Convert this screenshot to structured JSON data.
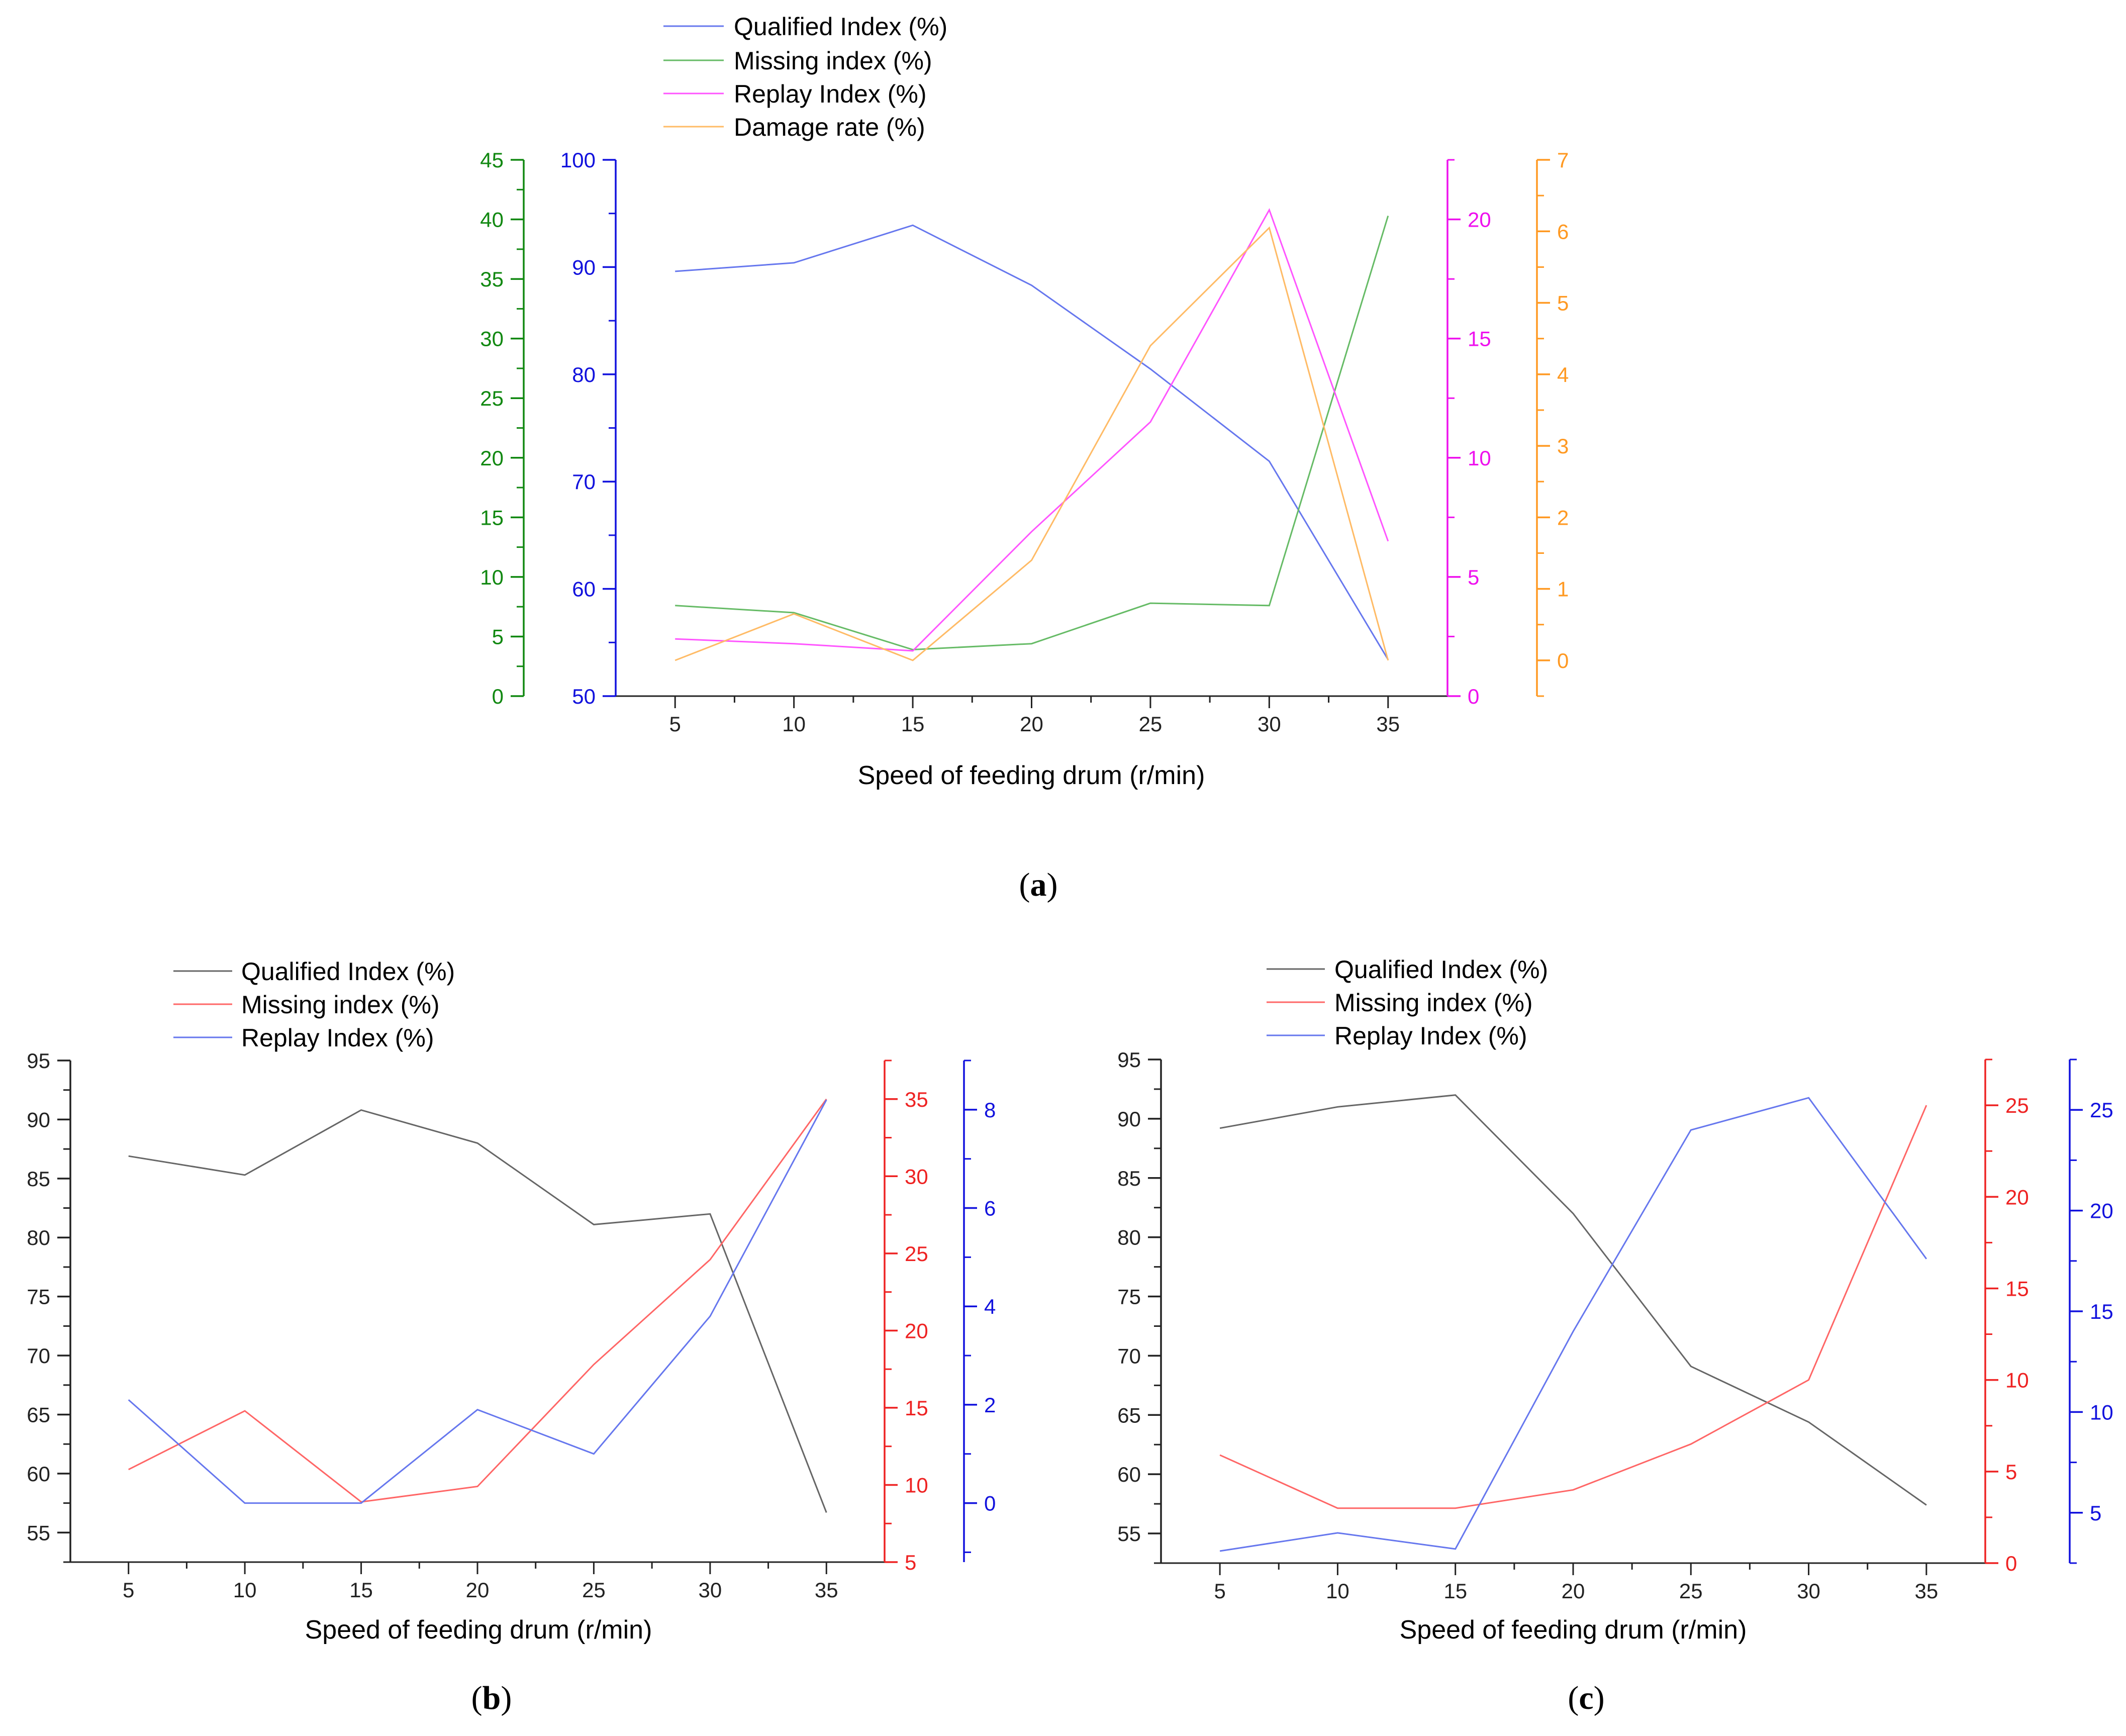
{
  "colors": {
    "axis_black": "#222222",
    "blue_axis": "#1111dd",
    "green_axis": "#118811",
    "magenta_axis": "#ee11ee",
    "orange_axis": "#ff9922",
    "red_axis": "#ee2222",
    "line_blue": "#6677ee",
    "line_green": "#66bb66",
    "line_magenta": "#ff55ff",
    "line_orange": "#ffbb66",
    "line_gray": "#666666",
    "line_red": "#ff6666"
  },
  "chart_data": [
    {
      "id": "a",
      "type": "line",
      "panel_label": "a",
      "xlabel": "Speed of feeding drum (r/min)",
      "x": [
        5,
        10,
        15,
        20,
        25,
        30,
        35
      ],
      "xlim": [
        2.5,
        37.5
      ],
      "x_ticks": [
        5,
        10,
        15,
        20,
        25,
        30,
        35
      ],
      "legend_position": "top-center",
      "axes": [
        {
          "id": "green",
          "side": "left-outer",
          "ylim": [
            0,
            45
          ],
          "ticks": [
            0,
            5,
            10,
            15,
            20,
            25,
            30,
            35,
            40,
            45
          ],
          "color": "#118811"
        },
        {
          "id": "blue",
          "side": "left",
          "ylim": [
            50,
            100
          ],
          "ticks": [
            50,
            60,
            70,
            80,
            90,
            100
          ],
          "color": "#1111dd"
        },
        {
          "id": "magenta",
          "side": "right",
          "ylim": [
            0,
            22.5
          ],
          "ticks": [
            0,
            5,
            10,
            15,
            20
          ],
          "color": "#ee11ee"
        },
        {
          "id": "orange",
          "side": "right-outer",
          "ylim": [
            -0.5,
            7
          ],
          "ticks": [
            0,
            1,
            2,
            3,
            4,
            5,
            6,
            7
          ],
          "color": "#ff9922"
        }
      ],
      "series": [
        {
          "name": "Qualified Index (%)",
          "axis": "blue",
          "color": "#6677ee",
          "values": [
            89.6,
            90.4,
            93.9,
            88.3,
            80.5,
            71.9,
            53.4
          ]
        },
        {
          "name": "Missing index (%)",
          "axis": "green",
          "color": "#66bb66",
          "values": [
            7.6,
            7.0,
            3.9,
            4.4,
            7.8,
            7.6,
            40.3
          ]
        },
        {
          "name": "Replay Index (%)",
          "axis": "magenta",
          "color": "#ff55ff",
          "values": [
            2.4,
            2.2,
            1.9,
            6.9,
            11.5,
            20.4,
            6.5
          ]
        },
        {
          "name": "Damage rate (%)",
          "axis": "orange",
          "color": "#ffbb66",
          "values": [
            0.0,
            0.65,
            0.0,
            1.4,
            4.4,
            6.05,
            0.0
          ]
        }
      ]
    },
    {
      "id": "b",
      "type": "line",
      "panel_label": "b",
      "xlabel": "Speed of feeding drum (r/min)",
      "x": [
        5,
        10,
        15,
        20,
        25,
        30,
        35
      ],
      "xlim": [
        2.5,
        37.5
      ],
      "x_ticks": [
        5,
        10,
        15,
        20,
        25,
        30,
        35
      ],
      "legend_position": "top-left",
      "axes": [
        {
          "id": "black",
          "side": "left",
          "ylim": [
            52.5,
            95
          ],
          "ticks": [
            55,
            60,
            65,
            70,
            75,
            80,
            85,
            90,
            95
          ],
          "color": "#222222"
        },
        {
          "id": "red",
          "side": "right",
          "ylim": [
            5,
            37.5
          ],
          "ticks": [
            5,
            10,
            15,
            20,
            25,
            30,
            35
          ],
          "color": "#ee2222"
        },
        {
          "id": "blueR",
          "side": "right-outer",
          "ylim": [
            -1.2,
            9.0
          ],
          "ticks": [
            0,
            2,
            4,
            6,
            8
          ],
          "color": "#1111dd"
        }
      ],
      "series": [
        {
          "name": "Qualified Index (%)",
          "axis": "black",
          "color": "#666666",
          "values": [
            86.9,
            85.3,
            90.8,
            88.0,
            81.1,
            82.0,
            56.7
          ]
        },
        {
          "name": "Missing index (%)",
          "axis": "red",
          "color": "#ff6666",
          "values": [
            11.0,
            14.8,
            8.9,
            9.9,
            17.8,
            24.6,
            35.0
          ]
        },
        {
          "name": "Replay Index (%)",
          "axis": "blueR",
          "color": "#6677ee",
          "values": [
            2.1,
            0.0,
            0.0,
            1.9,
            1.0,
            3.8,
            8.2
          ]
        }
      ]
    },
    {
      "id": "c",
      "type": "line",
      "panel_label": "c",
      "xlabel": "Speed of feeding drum (r/min)",
      "x": [
        5,
        10,
        15,
        20,
        25,
        30,
        35
      ],
      "xlim": [
        2.5,
        37.5
      ],
      "x_ticks": [
        5,
        10,
        15,
        20,
        25,
        30,
        35
      ],
      "legend_position": "top-left",
      "axes": [
        {
          "id": "black",
          "side": "left",
          "ylim": [
            52.5,
            95
          ],
          "ticks": [
            55,
            60,
            65,
            70,
            75,
            80,
            85,
            90,
            95
          ],
          "color": "#222222"
        },
        {
          "id": "red",
          "side": "right",
          "ylim": [
            0,
            27.5
          ],
          "ticks": [
            0,
            5,
            10,
            15,
            20,
            25
          ],
          "color": "#ee2222"
        },
        {
          "id": "blueR",
          "side": "right-outer",
          "ylim": [
            2.5,
            27.5
          ],
          "ticks": [
            5,
            10,
            15,
            20,
            25
          ],
          "color": "#1111dd"
        }
      ],
      "series": [
        {
          "name": "Qualified Index (%)",
          "axis": "black",
          "color": "#666666",
          "values": [
            89.2,
            91.0,
            92.0,
            82.0,
            69.1,
            64.4,
            57.4
          ]
        },
        {
          "name": "Missing index (%)",
          "axis": "red",
          "color": "#ff6666",
          "values": [
            5.9,
            3.0,
            3.0,
            4.0,
            6.5,
            10.0,
            25.0
          ]
        },
        {
          "name": "Replay Index (%)",
          "axis": "blueR",
          "color": "#6677ee",
          "values": [
            3.1,
            4.0,
            3.2,
            14.0,
            24.0,
            25.6,
            17.6
          ]
        }
      ]
    }
  ]
}
